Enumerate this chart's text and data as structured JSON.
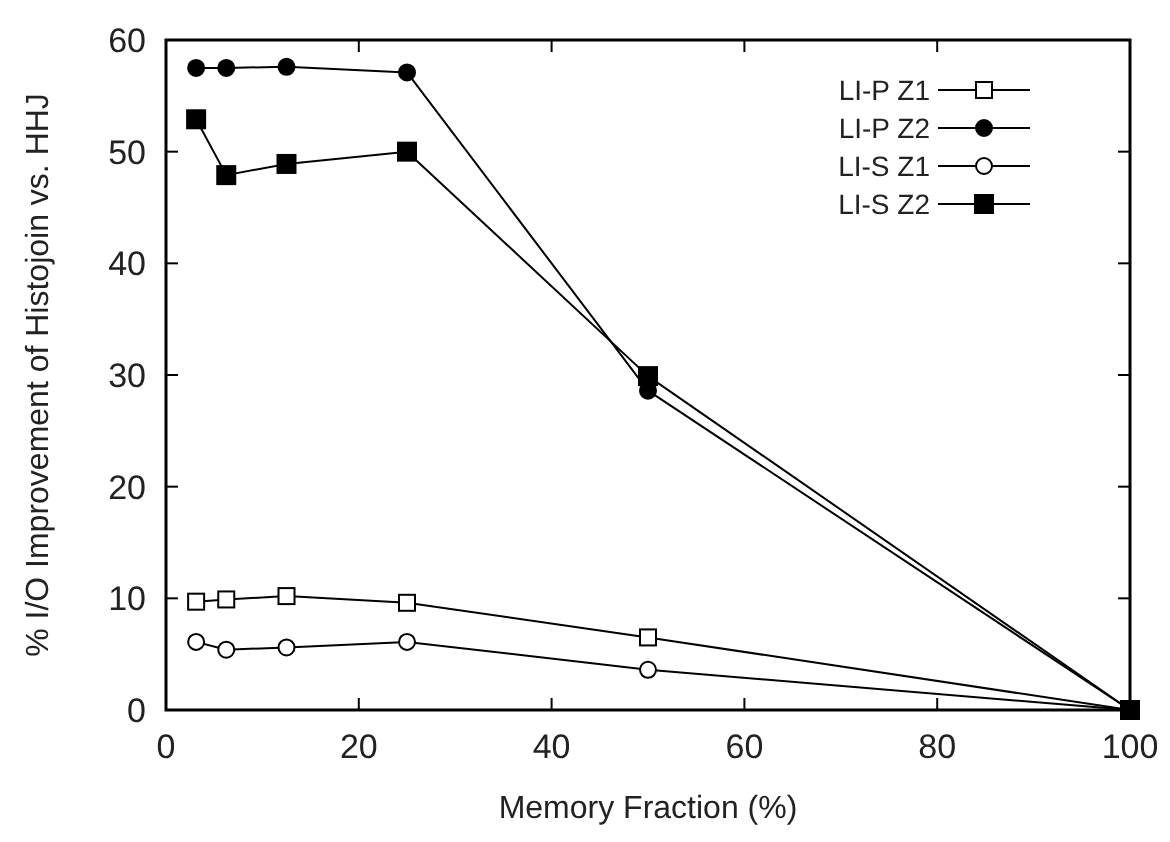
{
  "chart_data": {
    "type": "line",
    "xlabel": "Memory Fraction (%)",
    "ylabel": "% I/O Improvement of Histojoin vs. HHJ",
    "x": [
      3.125,
      6.25,
      12.5,
      25,
      50,
      100
    ],
    "series": [
      {
        "name": "LI-P Z1",
        "color": "#000000",
        "marker": "square",
        "values": [
          9.7,
          9.9,
          10.2,
          9.6,
          6.5,
          0
        ]
      },
      {
        "name": "LI-P Z2",
        "color": "#000000",
        "marker": "circle",
        "values": [
          57.5,
          57.5,
          57.6,
          57.1,
          28.6,
          0
        ]
      },
      {
        "name": "LI-S Z1",
        "color": "#000000",
        "marker": "circle",
        "values": [
          6.1,
          5.4,
          5.6,
          6.1,
          3.6,
          0
        ]
      },
      {
        "name": "LI-S Z2",
        "color": "#000000",
        "marker": "square",
        "values": [
          52.9,
          47.9,
          48.9,
          50,
          29.9,
          0
        ]
      }
    ],
    "xlim": [
      0,
      100
    ],
    "xticks": [
      0,
      20,
      40,
      60,
      80,
      100
    ],
    "ylim": [
      0,
      60
    ],
    "yticks": [
      0,
      10,
      20,
      30,
      40,
      50,
      60
    ],
    "grid": false,
    "legend": "top right",
    "line_style": "solid"
  }
}
